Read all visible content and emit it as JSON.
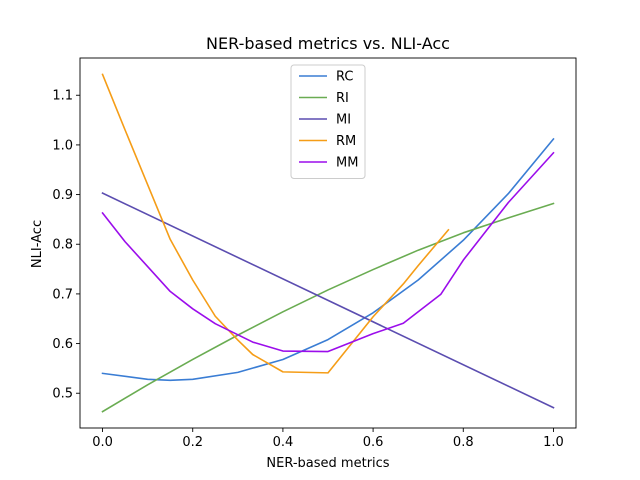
{
  "chart_data": {
    "type": "line",
    "title": "NER-based metrics vs. NLI-Acc",
    "xlabel": "NER-based metrics",
    "ylabel": "NLI-Acc",
    "xlim": [
      -0.05,
      1.05
    ],
    "ylim": [
      0.43,
      1.175
    ],
    "xticks": [
      0.0,
      0.2,
      0.4,
      0.6,
      0.8,
      1.0
    ],
    "xtick_labels": [
      "0.0",
      "0.2",
      "0.4",
      "0.6",
      "0.8",
      "1.0"
    ],
    "yticks": [
      0.5,
      0.6,
      0.7,
      0.8,
      0.9,
      1.0,
      1.1
    ],
    "ytick_labels": [
      "0.5",
      "0.6",
      "0.7",
      "0.8",
      "0.9",
      "1.0",
      "1.1"
    ],
    "grid": false,
    "legend_position": "top-center",
    "series": [
      {
        "name": "RC",
        "color": "#3a7dd4",
        "x": [
          0.0,
          0.1,
          0.15,
          0.2,
          0.3,
          0.4,
          0.5,
          0.6,
          0.7,
          0.8,
          0.9,
          1.0
        ],
        "y": [
          0.54,
          0.528,
          0.526,
          0.528,
          0.542,
          0.568,
          0.608,
          0.662,
          0.728,
          0.808,
          0.902,
          1.012
        ]
      },
      {
        "name": "RI",
        "color": "#6aac52",
        "x": [
          0.0,
          0.1,
          0.2,
          0.3,
          0.4,
          0.5,
          0.6,
          0.7,
          0.8,
          0.9,
          1.0
        ],
        "y": [
          0.463,
          0.517,
          0.568,
          0.617,
          0.664,
          0.708,
          0.749,
          0.788,
          0.823,
          0.853,
          0.882
        ]
      },
      {
        "name": "MI",
        "color": "#5b4db0",
        "x": [
          0.0,
          1.0
        ],
        "y": [
          0.903,
          0.471
        ]
      },
      {
        "name": "RM",
        "color": "#f59d17",
        "x": [
          0.0,
          0.05,
          0.1,
          0.15,
          0.2,
          0.25,
          0.3,
          0.333,
          0.4,
          0.5,
          0.6,
          0.667,
          0.7,
          0.767
        ],
        "y": [
          1.142,
          1.03,
          0.92,
          0.81,
          0.728,
          0.655,
          0.607,
          0.578,
          0.543,
          0.541,
          0.654,
          0.72,
          0.757,
          0.829
        ]
      },
      {
        "name": "MM",
        "color": "#9b0deb",
        "x": [
          0.0,
          0.05,
          0.1,
          0.15,
          0.2,
          0.25,
          0.333,
          0.4,
          0.5,
          0.6,
          0.667,
          0.75,
          0.8,
          0.9,
          1.0
        ],
        "y": [
          0.863,
          0.805,
          0.755,
          0.705,
          0.67,
          0.64,
          0.603,
          0.585,
          0.584,
          0.62,
          0.641,
          0.699,
          0.768,
          0.884,
          0.984
        ]
      }
    ]
  }
}
